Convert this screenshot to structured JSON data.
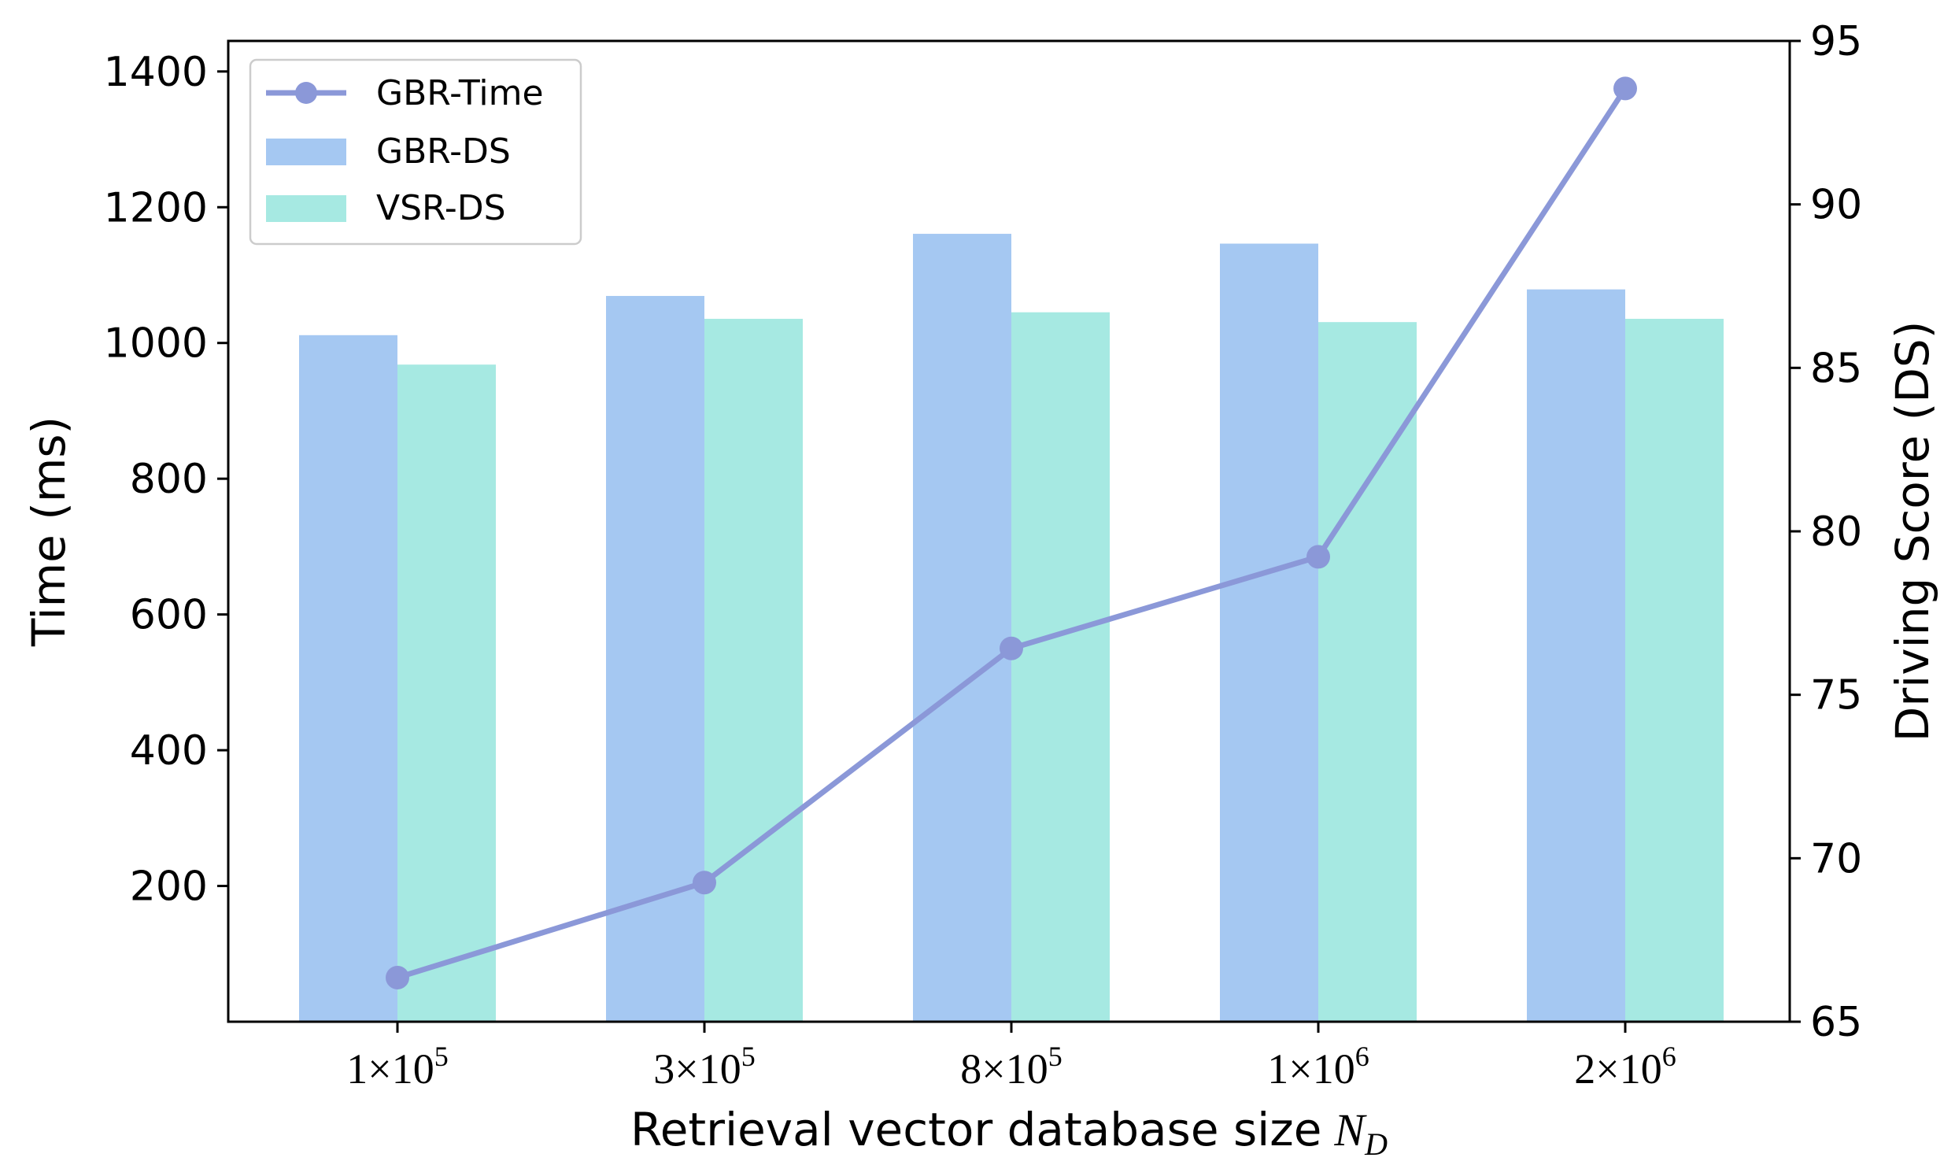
{
  "chart_data": {
    "type": "bar+line",
    "xlabel": "Retrieval vector database size",
    "xlabel_math": "N",
    "xlabel_sub": "D",
    "categories": [
      {
        "coef": "1",
        "base": "10",
        "exp": "5"
      },
      {
        "coef": "3",
        "base": "10",
        "exp": "5"
      },
      {
        "coef": "8",
        "base": "10",
        "exp": "5"
      },
      {
        "coef": "1",
        "base": "10",
        "exp": "6"
      },
      {
        "coef": "2",
        "base": "10",
        "exp": "6"
      }
    ],
    "left_axis": {
      "label": "Time (ms)",
      "ylim": [
        0,
        1445
      ],
      "ticks": [
        "200",
        "400",
        "600",
        "800",
        "1000",
        "1200",
        "1400"
      ]
    },
    "right_axis": {
      "label": "Driving Score (DS)",
      "ylim": [
        65,
        95
      ],
      "ticks": [
        "65",
        "70",
        "75",
        "80",
        "85",
        "90",
        "95"
      ]
    },
    "series": [
      {
        "name": "GBR-Time",
        "kind": "line",
        "axis": "left",
        "color": "#8b98d8",
        "values": [
          65,
          205,
          550,
          685,
          1375
        ]
      },
      {
        "name": "GBR-DS",
        "kind": "bar",
        "axis": "right",
        "color": "#a5c8f2",
        "values": [
          86.0,
          87.2,
          89.1,
          88.8,
          87.4
        ]
      },
      {
        "name": "VSR-DS",
        "kind": "bar",
        "axis": "right",
        "color": "#a6e9e2",
        "values": [
          85.1,
          86.5,
          86.7,
          86.4,
          86.5
        ]
      }
    ],
    "legend_position": "upper-left",
    "grid": false
  }
}
